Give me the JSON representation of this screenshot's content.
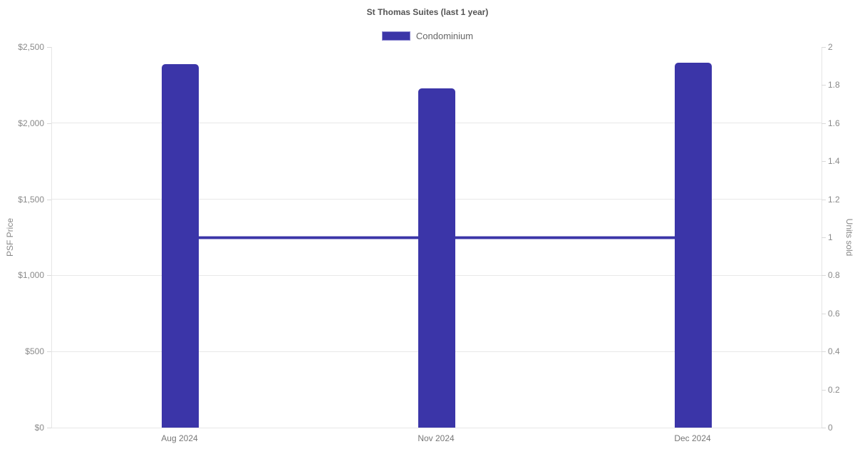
{
  "chart": {
    "title": "St Thomas Suites (last 1 year)",
    "legend": {
      "label": "Condominium",
      "color": "#3b35a8"
    },
    "y_left": {
      "title": "PSF Price"
    },
    "y_right": {
      "title": "Units sold"
    }
  },
  "chart_data": {
    "type": "bar",
    "title": "St Thomas Suites (last 1 year)",
    "categories": [
      "Aug 2024",
      "Nov 2024",
      "Dec 2024"
    ],
    "series": [
      {
        "name": "Condominium",
        "type": "bar",
        "axis": "left",
        "values": [
          2388,
          2227,
          2396
        ],
        "color": "#3b35a8"
      },
      {
        "name": "Units sold",
        "type": "line",
        "axis": "right",
        "values": [
          1,
          1,
          1
        ],
        "color": "#3b35a8"
      }
    ],
    "ylabel_left": "PSF Price",
    "ylabel_right": "Units sold",
    "y_left_axis": {
      "min": 0,
      "max": 2500,
      "tick_step": 500,
      "tick_labels": [
        "$0",
        "$500",
        "$1,000",
        "$1,500",
        "$2,000",
        "$2,500"
      ]
    },
    "y_right_axis": {
      "min": 0,
      "max": 2,
      "tick_step": 0.2,
      "tick_labels": [
        "0",
        "0.2",
        "0.4",
        "0.6",
        "0.8",
        "1",
        "1.2",
        "1.4",
        "1.6",
        "1.8",
        "2"
      ]
    },
    "legend_position": "top",
    "grid": true
  }
}
